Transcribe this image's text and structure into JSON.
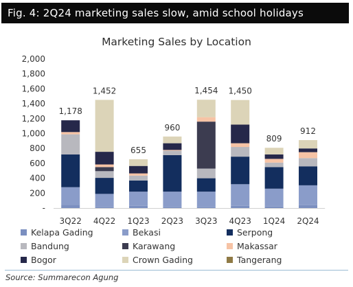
{
  "header": {
    "title": "Fig. 4: 2Q24 marketing sales slow, amid school holidays"
  },
  "source": "Source: Summarecon Agung",
  "chart_data": {
    "type": "bar",
    "stacked": true,
    "title": "Marketing Sales by Location",
    "xlabel": "",
    "ylabel": "",
    "ylim": [
      0,
      2000
    ],
    "yticks": [
      0,
      200,
      400,
      600,
      800,
      1000,
      1200,
      1400,
      1600,
      1800,
      2000
    ],
    "ytick_labels": [
      "-",
      "200",
      "400",
      "600",
      "800",
      "1,000",
      "1,200",
      "1,400",
      "1,600",
      "1,800",
      "2,000"
    ],
    "grid": false,
    "legend_position": "bottom",
    "categories": [
      "3Q22",
      "4Q22",
      "1Q23",
      "2Q23",
      "3Q23",
      "4Q23",
      "1Q24",
      "2Q24"
    ],
    "totals": [
      1178,
      1452,
      655,
      960,
      1454,
      1450,
      809,
      912
    ],
    "total_labels": [
      "1,178",
      "1,452",
      "655",
      "960",
      "1,454",
      "1,450",
      "809",
      "912"
    ],
    "series": [
      {
        "name": "Kelapa Gading",
        "color": "#7b8fc0",
        "values": [
          45,
          10,
          30,
          10,
          10,
          30,
          20,
          40
        ]
      },
      {
        "name": "Bekasi",
        "color": "#8a9cc9",
        "values": [
          235,
          180,
          190,
          210,
          210,
          290,
          240,
          265
        ]
      },
      {
        "name": "Serpong",
        "color": "#132e5e",
        "values": [
          440,
          215,
          150,
          490,
          180,
          370,
          290,
          255
        ]
      },
      {
        "name": "Bandung",
        "color": "#b8b8be",
        "values": [
          270,
          90,
          65,
          60,
          130,
          130,
          60,
          110
        ]
      },
      {
        "name": "Karawang",
        "color": "#3c3c50",
        "values": [
          0,
          55,
          0,
          0,
          630,
          0,
          0,
          0
        ]
      },
      {
        "name": "Makassar",
        "color": "#f6c3a5",
        "values": [
          30,
          35,
          30,
          10,
          60,
          50,
          50,
          80
        ]
      },
      {
        "name": "Bogor",
        "color": "#26284a",
        "values": [
          158,
          170,
          100,
          90,
          0,
          250,
          60,
          50
        ]
      },
      {
        "name": "Crown Gading",
        "color": "#dcd4b8",
        "values": [
          0,
          697,
          90,
          90,
          234,
          330,
          89,
          112
        ]
      },
      {
        "name": "Tangerang",
        "color": "#8f7a45",
        "values": [
          0,
          0,
          0,
          0,
          0,
          0,
          0,
          0
        ]
      }
    ]
  }
}
